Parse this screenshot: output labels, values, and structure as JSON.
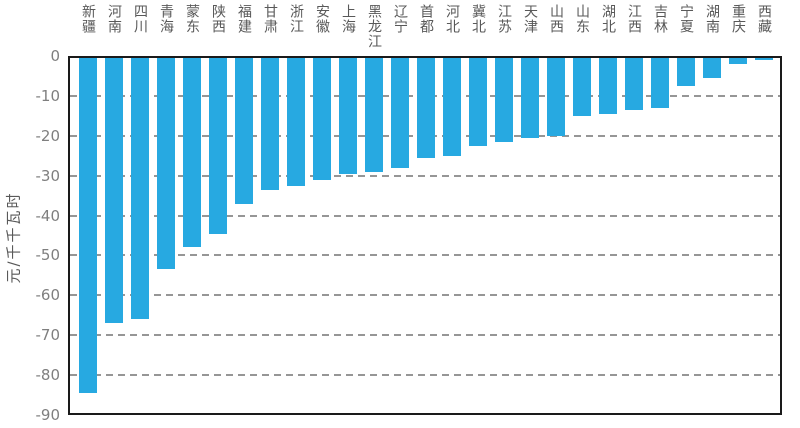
{
  "chart_data": {
    "type": "bar",
    "title": "",
    "ylabel": "元/千千瓦时",
    "xlabel": "",
    "categories": [
      "新疆",
      "河南",
      "四川",
      "青海",
      "蒙东",
      "陕西",
      "福建",
      "甘肃",
      "浙江",
      "安徽",
      "上海",
      "黑龙江",
      "辽宁",
      "首都",
      "河北",
      "冀北",
      "江苏",
      "天津",
      "山西",
      "山东",
      "湖北",
      "江西",
      "吉林",
      "宁夏",
      "湖南",
      "重庆",
      "西藏"
    ],
    "values": [
      -84,
      -66.5,
      -65.5,
      -53,
      -47.5,
      -44,
      -36.5,
      -33,
      -32,
      -30.5,
      -29,
      -28.5,
      -27.5,
      -25,
      -24.5,
      -22,
      -21,
      -20,
      -19.5,
      -14.5,
      -14,
      -13,
      -12.5,
      -7,
      -5,
      -1.5,
      -0.5
    ],
    "ylim": [
      -90,
      0
    ],
    "yticks": [
      0,
      -10,
      -20,
      -30,
      -40,
      -50,
      -60,
      -70,
      -80,
      -90
    ],
    "grid": "horizontal-dashed",
    "legend_position": "none",
    "colors": {
      "bar": "#27a9e1",
      "axis_border": "#1a1a1a",
      "gridline": "#969696",
      "tick_label": "#7f7f7f",
      "category_label": "#595959"
    }
  }
}
